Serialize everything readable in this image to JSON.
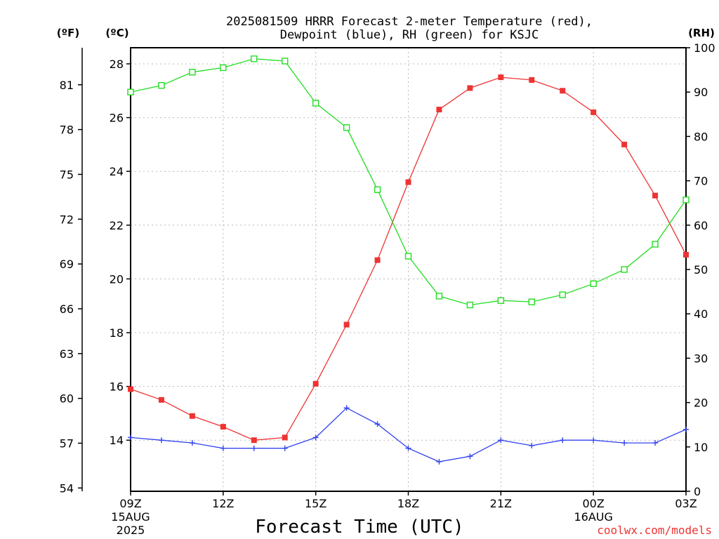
{
  "chart_data": {
    "type": "line",
    "title": "2025081509 HRRR Forecast 2-meter Temperature (red),",
    "subtitle": "Dewpoint (blue), RH (green) for KSJC",
    "xlabel": "Forecast Time (UTC)",
    "ylabel_left_f": "(ºF)",
    "ylabel_left_c": "(ºC)",
    "ylabel_right": "(RH)",
    "credit": "coolwx.com/models",
    "x_hours": [
      9,
      10,
      11,
      12,
      13,
      14,
      15,
      16,
      17,
      18,
      19,
      20,
      21,
      22,
      23,
      24,
      25,
      26,
      27
    ],
    "x_range": [
      9,
      27
    ],
    "x_ticks": [
      {
        "h": 9,
        "label": "09Z",
        "sub1": "15AUG",
        "sub2": "2025"
      },
      {
        "h": 12,
        "label": "12Z",
        "sub1": "",
        "sub2": ""
      },
      {
        "h": 15,
        "label": "15Z",
        "sub1": "",
        "sub2": ""
      },
      {
        "h": 18,
        "label": "18Z",
        "sub1": "",
        "sub2": ""
      },
      {
        "h": 21,
        "label": "21Z",
        "sub1": "",
        "sub2": ""
      },
      {
        "h": 24,
        "label": "00Z",
        "sub1": "16AUG",
        "sub2": ""
      },
      {
        "h": 27,
        "label": "03Z",
        "sub1": "",
        "sub2": ""
      }
    ],
    "ylim_c": [
      12.1,
      28.6
    ],
    "yticks_c": [
      14,
      16,
      18,
      20,
      22,
      24,
      26,
      28
    ],
    "yticks_f": [
      54,
      57,
      60,
      63,
      66,
      69,
      72,
      75,
      78,
      81
    ],
    "ylim_rh": [
      0,
      100
    ],
    "yticks_rh": [
      0,
      10,
      20,
      30,
      40,
      50,
      60,
      70,
      80,
      90,
      100
    ],
    "grid": true,
    "series": [
      {
        "name": "Temperature",
        "axis": "celsius",
        "color": "#ee3333",
        "marker": "filled-square",
        "values": [
          15.9,
          15.5,
          14.9,
          14.5,
          14.0,
          14.1,
          16.1,
          18.3,
          20.7,
          23.6,
          26.3,
          27.1,
          27.5,
          27.4,
          27.0,
          26.2,
          25.0,
          23.1,
          20.9
        ]
      },
      {
        "name": "Dewpoint",
        "axis": "celsius",
        "color": "#3344ee",
        "marker": "plus",
        "values": [
          14.1,
          14.0,
          13.9,
          13.7,
          13.7,
          13.7,
          14.1,
          15.2,
          14.6,
          13.7,
          13.2,
          13.4,
          14.0,
          13.8,
          14.0,
          14.0,
          13.9,
          13.9,
          14.4
        ]
      },
      {
        "name": "RH",
        "axis": "rh",
        "color": "#22dd22",
        "marker": "open-square",
        "values": [
          90,
          91.5,
          94.5,
          95.5,
          97.5,
          97,
          87.5,
          82,
          68,
          53,
          44,
          42,
          43,
          42.7,
          44.3,
          46.8,
          50,
          55.7,
          65.7
        ]
      }
    ]
  }
}
